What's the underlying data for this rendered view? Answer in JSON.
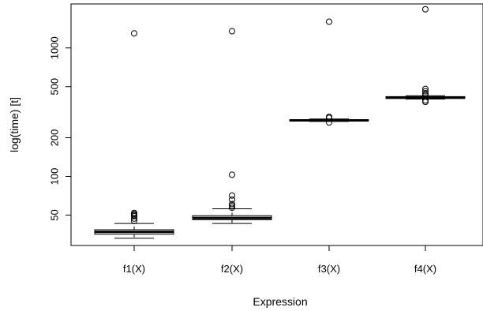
{
  "chart_data": {
    "type": "boxplot",
    "title": "",
    "xlabel": "Expression",
    "ylabel": "log(time) [t]",
    "y_scale": "log",
    "ylim": [
      29,
      2200
    ],
    "y_ticks": [
      50,
      100,
      200,
      500,
      1000
    ],
    "y_tick_labels": [
      "50",
      "100",
      "200",
      "500",
      "1000"
    ],
    "categories": [
      "f1(X)",
      "f2(X)",
      "f3(X)",
      "f4(X)"
    ],
    "boxes": [
      {
        "name": "f1(X)",
        "whisker_low": 33,
        "q1": 35.5,
        "median": 37,
        "q3": 38.5,
        "whisker_high": 43,
        "outliers": [
          45,
          47,
          49,
          50,
          51,
          52,
          1300
        ]
      },
      {
        "name": "f2(X)",
        "whisker_low": 43,
        "q1": 46,
        "median": 47.5,
        "q3": 49.5,
        "whisker_high": 56,
        "outliers": [
          57,
          59,
          61,
          66,
          71,
          103,
          1350
        ]
      },
      {
        "name": "f3(X)",
        "whisker_low": 268,
        "q1": 271,
        "median": 273,
        "q3": 276,
        "whisker_high": 280,
        "outliers": [
          263,
          286,
          291,
          1600
        ]
      },
      {
        "name": "f4(X)",
        "whisker_low": 400,
        "q1": 405,
        "median": 410,
        "q3": 418,
        "whisker_high": 425,
        "outliers": [
          380,
          390,
          430,
          445,
          460,
          480,
          2000
        ]
      }
    ]
  }
}
